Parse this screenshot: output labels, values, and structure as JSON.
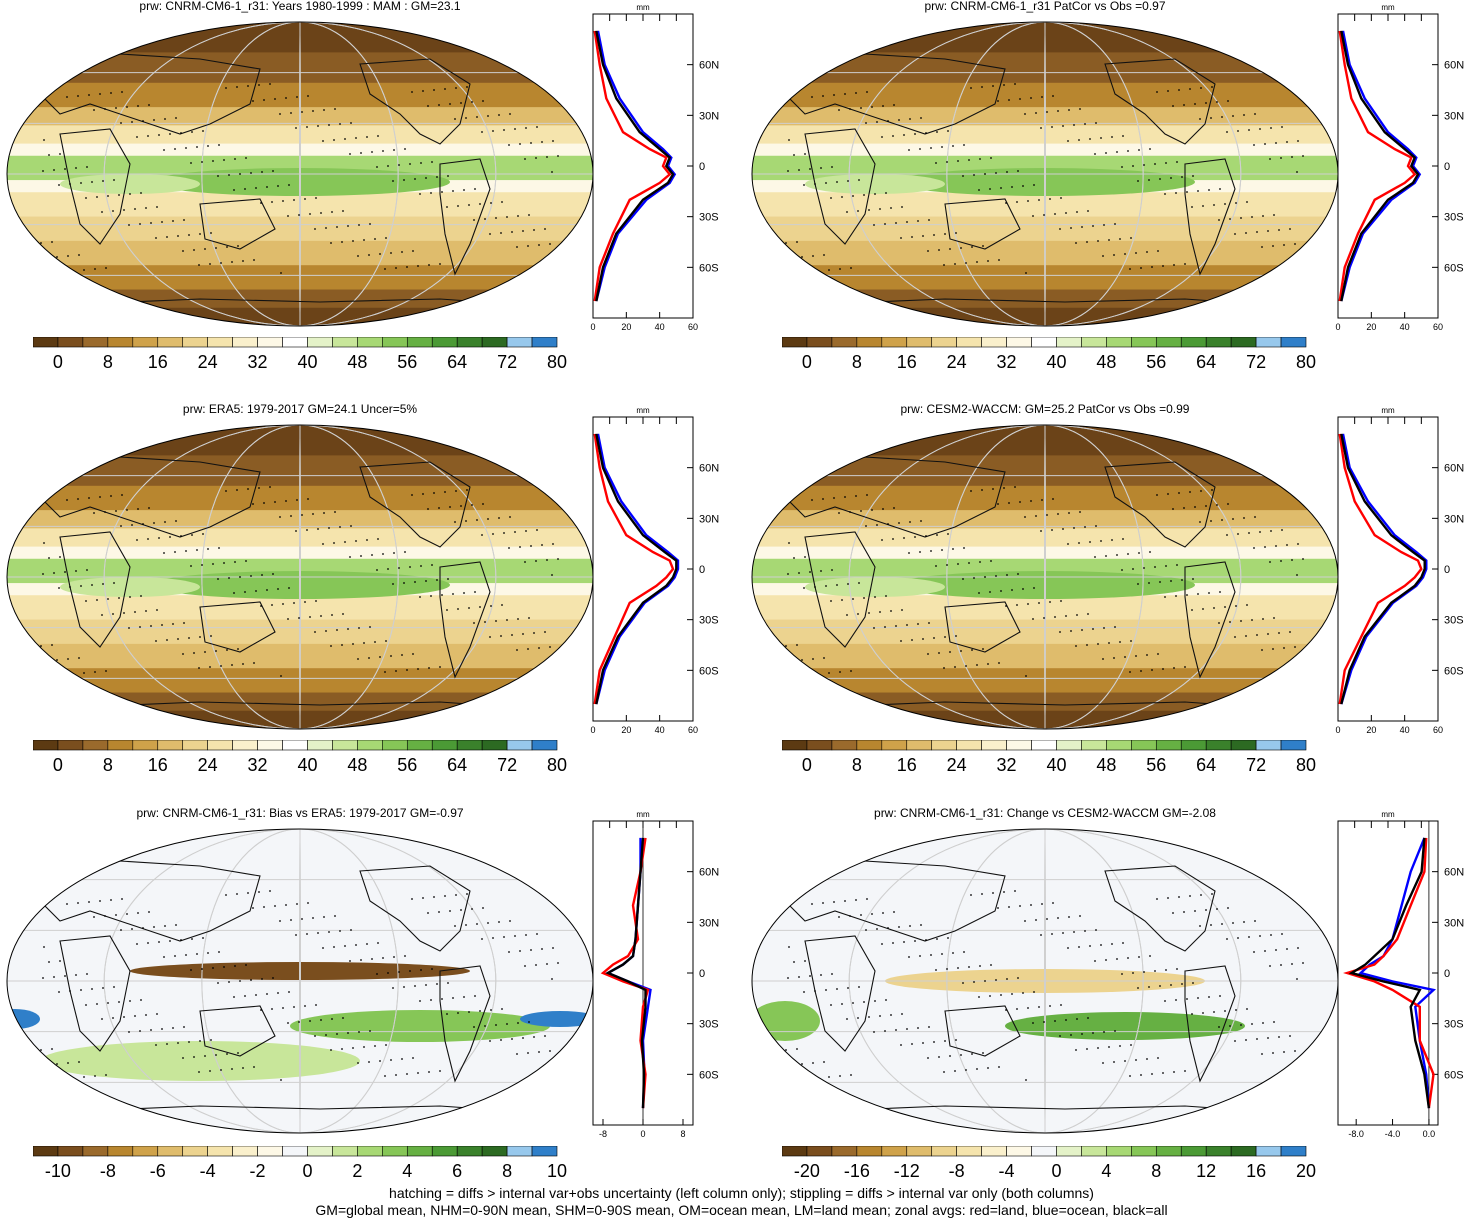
{
  "panels": [
    {
      "title": "prw: CNRM-CM6-1_r31: Years 1980-1999 : MAM : GM=23.1",
      "kind": "abs",
      "colorbar_labels": [
        "0",
        "8",
        "16",
        "24",
        "32",
        "40",
        "48",
        "56",
        "64",
        "72",
        "80"
      ],
      "zonal_unit": "mm",
      "zonal_x_ticks": [
        "0",
        "20",
        "40",
        "60"
      ],
      "zonal_y_ticks": [
        "60N",
        "30N",
        "0",
        "30S",
        "60S"
      ]
    },
    {
      "title": "prw: CNRM-CM6-1_r31 PatCor vs Obs =0.97",
      "kind": "abs",
      "colorbar_labels": [
        "0",
        "8",
        "16",
        "24",
        "32",
        "40",
        "48",
        "56",
        "64",
        "72",
        "80"
      ],
      "zonal_unit": "mm",
      "zonal_x_ticks": [
        "0",
        "20",
        "40",
        "60"
      ],
      "zonal_y_ticks": [
        "60N",
        "30N",
        "0",
        "30S",
        "60S"
      ]
    },
    {
      "title": "prw: ERA5: 1979-2017 GM=24.1 Uncer=5%",
      "kind": "abs",
      "colorbar_labels": [
        "0",
        "8",
        "16",
        "24",
        "32",
        "40",
        "48",
        "56",
        "64",
        "72",
        "80"
      ],
      "zonal_unit": "mm",
      "zonal_x_ticks": [
        "0",
        "20",
        "40",
        "60"
      ],
      "zonal_y_ticks": [
        "60N",
        "30N",
        "0",
        "30S",
        "60S"
      ]
    },
    {
      "title": "prw: CESM2-WACCM: GM=25.2 PatCor vs Obs =0.99",
      "kind": "abs",
      "colorbar_labels": [
        "0",
        "8",
        "16",
        "24",
        "32",
        "40",
        "48",
        "56",
        "64",
        "72",
        "80"
      ],
      "zonal_unit": "mm",
      "zonal_x_ticks": [
        "0",
        "20",
        "40",
        "60"
      ],
      "zonal_y_ticks": [
        "60N",
        "30N",
        "0",
        "30S",
        "60S"
      ]
    },
    {
      "title": "prw: CNRM-CM6-1_r31: Bias vs ERA5: 1979-2017 GM=-0.97",
      "kind": "diff",
      "colorbar_labels": [
        "-10",
        "-8",
        "-6",
        "-4",
        "-2",
        "0",
        "2",
        "4",
        "6",
        "8",
        "10"
      ],
      "zonal_unit": "mm",
      "zonal_x_ticks": [
        "-8",
        "0",
        "8"
      ],
      "zonal_y_ticks": [
        "60N",
        "30N",
        "0",
        "30S",
        "60S"
      ]
    },
    {
      "title": "prw: CNRM-CM6-1_r31: Change vs CESM2-WACCM GM=-2.08",
      "kind": "diff",
      "colorbar_labels": [
        "-20",
        "-16",
        "-12",
        "-8",
        "-4",
        "0",
        "4",
        "8",
        "12",
        "16",
        "20"
      ],
      "zonal_unit": "mm",
      "zonal_x_ticks": [
        "-8.0",
        "-4.0",
        "0.0"
      ],
      "zonal_y_ticks": [
        "60N",
        "30N",
        "0",
        "30S",
        "60S"
      ]
    }
  ],
  "colors": {
    "abs_scale": [
      "#5c3a12",
      "#7a4e1e",
      "#9a6a2c",
      "#b8862f",
      "#cfa24a",
      "#dfbc6c",
      "#ecd38f",
      "#f5e4ad",
      "#faf0cc",
      "#fdf8e6",
      "#ffffff",
      "#e4f2c8",
      "#c8e69a",
      "#a7d874",
      "#86c657",
      "#66b043",
      "#4b9a35",
      "#3a812b",
      "#2c6a22",
      "#97c8ec",
      "#2f7fc9"
    ],
    "diff_scale": [
      "#5c3a12",
      "#7a4e1e",
      "#9a6a2c",
      "#b8862f",
      "#cfa24a",
      "#dfbc6c",
      "#ecd38f",
      "#f5e4ad",
      "#faf0cc",
      "#fdf8e6",
      "#f4f6f9",
      "#e4f2c8",
      "#c8e69a",
      "#a7d874",
      "#86c657",
      "#66b043",
      "#4b9a35",
      "#3a812b",
      "#2c6a22",
      "#97c8ec",
      "#2f7fc9"
    ],
    "land_line": "#0000ff",
    "ocean_line": "#0000ff",
    "zonal_land": "#ff0000",
    "zonal_ocean": "#0000ff",
    "zonal_all": "#000000"
  },
  "chart_data": [
    {
      "type": "heatmap",
      "title": "prw: CNRM-CM6-1_r31: Years 1980-1999 : MAM : GM=23.1",
      "value_range": [
        0,
        80
      ],
      "zonal_profile_lat": [
        80,
        60,
        40,
        20,
        10,
        5,
        0,
        -5,
        -10,
        -20,
        -40,
        -60,
        -80
      ],
      "zonal_all": [
        2,
        6,
        14,
        28,
        40,
        46,
        44,
        48,
        45,
        30,
        14,
        6,
        2
      ],
      "zonal_land": [
        1,
        4,
        8,
        18,
        34,
        44,
        42,
        46,
        40,
        22,
        12,
        4,
        1
      ],
      "zonal_ocean": [
        3,
        7,
        16,
        30,
        42,
        47,
        45,
        49,
        46,
        32,
        15,
        7,
        2
      ]
    },
    {
      "type": "heatmap",
      "title": "prw: CNRM-CM6-1_r31 PatCor vs Obs =0.97",
      "value_range": [
        0,
        80
      ],
      "zonal_profile_lat": [
        80,
        60,
        40,
        20,
        10,
        5,
        0,
        -5,
        -10,
        -20,
        -40,
        -60,
        -80
      ],
      "zonal_all": [
        2,
        6,
        14,
        28,
        40,
        46,
        44,
        48,
        45,
        30,
        14,
        6,
        2
      ],
      "zonal_land": [
        1,
        4,
        8,
        18,
        34,
        44,
        42,
        46,
        40,
        22,
        12,
        4,
        1
      ],
      "zonal_ocean": [
        3,
        7,
        16,
        30,
        42,
        47,
        45,
        49,
        46,
        32,
        15,
        7,
        2
      ]
    },
    {
      "type": "heatmap",
      "title": "prw: ERA5: 1979-2017 GM=24.1 Uncer=5%",
      "value_range": [
        0,
        80
      ],
      "zonal_profile_lat": [
        80,
        60,
        40,
        20,
        10,
        5,
        0,
        -5,
        -10,
        -20,
        -40,
        -60,
        -80
      ],
      "zonal_all": [
        2,
        6,
        15,
        30,
        43,
        50,
        50,
        48,
        44,
        30,
        15,
        6,
        2
      ],
      "zonal_land": [
        1,
        4,
        9,
        20,
        36,
        46,
        48,
        44,
        38,
        22,
        13,
        4,
        1
      ],
      "zonal_ocean": [
        3,
        7,
        17,
        32,
        45,
        51,
        51,
        49,
        45,
        31,
        16,
        7,
        2
      ]
    },
    {
      "type": "heatmap",
      "title": "prw: CESM2-WACCM: GM=25.2 PatCor vs Obs =0.99",
      "value_range": [
        0,
        80
      ],
      "zonal_profile_lat": [
        80,
        60,
        40,
        20,
        10,
        5,
        0,
        -5,
        -10,
        -20,
        -40,
        -60,
        -80
      ],
      "zonal_all": [
        2,
        6,
        16,
        32,
        45,
        52,
        52,
        50,
        46,
        32,
        16,
        7,
        2
      ],
      "zonal_land": [
        1,
        4,
        10,
        22,
        38,
        48,
        50,
        46,
        40,
        24,
        14,
        4,
        1
      ],
      "zonal_ocean": [
        3,
        7,
        18,
        34,
        47,
        53,
        53,
        51,
        47,
        33,
        17,
        8,
        2
      ]
    },
    {
      "type": "heatmap",
      "title": "prw: CNRM-CM6-1_r31: Bias vs ERA5: 1979-2017 GM=-0.97",
      "value_range": [
        -10,
        10
      ],
      "zonal_profile_lat": [
        80,
        60,
        40,
        20,
        10,
        5,
        0,
        -5,
        -10,
        -20,
        -40,
        -60,
        -80
      ],
      "zonal_all": [
        0,
        -0.5,
        -1,
        -1.5,
        -2,
        -4,
        -7,
        -3,
        0.5,
        0.5,
        -0.2,
        0.2,
        0
      ],
      "zonal_land": [
        0.5,
        -0.5,
        -2,
        -1,
        -3,
        -6,
        -8,
        -4,
        1,
        0,
        -0.5,
        0.5,
        0
      ],
      "zonal_ocean": [
        -0.5,
        -0.5,
        -1,
        -1.5,
        -2,
        -4,
        -7,
        -3,
        1.5,
        1,
        0,
        0.3,
        0
      ]
    },
    {
      "type": "heatmap",
      "title": "prw: CNRM-CM6-1_r31: Change vs CESM2-WACCM GM=-2.08",
      "value_range": [
        -20,
        20
      ],
      "zonal_profile_lat": [
        80,
        60,
        40,
        20,
        10,
        5,
        0,
        -5,
        -10,
        -20,
        -40,
        -60,
        -80
      ],
      "zonal_all": [
        -0.5,
        -0.8,
        -2.5,
        -4,
        -6,
        -7,
        -8.5,
        -5,
        -1,
        -2,
        -1.5,
        -0.5,
        0
      ],
      "zonal_land": [
        -0.3,
        -0.5,
        -2,
        -3.5,
        -5,
        -6,
        -9,
        -6,
        -4,
        -1,
        -1,
        0.5,
        0
      ],
      "zonal_ocean": [
        -0.5,
        -2,
        -3,
        -4,
        -5,
        -6.5,
        -7.5,
        -4,
        0.5,
        -1.5,
        -1,
        -0.3,
        0
      ]
    }
  ],
  "footer": {
    "line1": "hatching = diffs > internal var+obs uncertainty (left column only); stippling = diffs > internal var only (both columns)",
    "line2": "GM=global mean, NHM=0-90N mean, SHM=0-90S mean, OM=ocean mean, LM=land mean; zonal avgs: red=land, blue=ocean, black=all"
  }
}
